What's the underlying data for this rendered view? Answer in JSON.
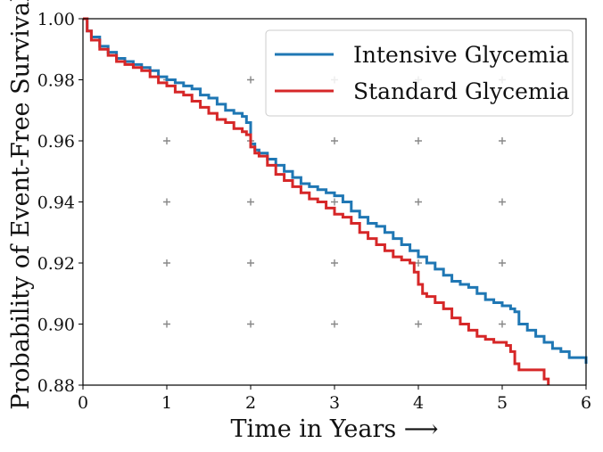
{
  "chart_data": {
    "type": "line",
    "title": "",
    "xlabel": "Time in Years ⟶",
    "ylabel": "Probability of Event-Free Survival",
    "xlim": [
      0,
      6
    ],
    "ylim": [
      0.88,
      1.0
    ],
    "xticks": [
      0,
      1,
      2,
      3,
      4,
      5,
      6
    ],
    "xtick_labels": [
      "0",
      "1",
      "2",
      "3",
      "4",
      "5",
      "6"
    ],
    "yticks": [
      0.88,
      0.9,
      0.92,
      0.94,
      0.96,
      0.98,
      1.0
    ],
    "ytick_labels": [
      "0.88",
      "0.90",
      "0.92",
      "0.94",
      "0.96",
      "0.98",
      "1.00"
    ],
    "grid": "plus-markers",
    "legend_position": "top-right",
    "series": [
      {
        "name": "Intensive Glycemia",
        "color": "#1f77b4",
        "step": true,
        "x": [
          0,
          0.05,
          0.1,
          0.2,
          0.3,
          0.4,
          0.5,
          0.6,
          0.7,
          0.8,
          0.9,
          1.0,
          1.1,
          1.2,
          1.3,
          1.4,
          1.5,
          1.6,
          1.7,
          1.8,
          1.9,
          1.95,
          2.0,
          2.05,
          2.1,
          2.2,
          2.3,
          2.4,
          2.5,
          2.6,
          2.7,
          2.8,
          2.9,
          3.0,
          3.1,
          3.2,
          3.3,
          3.4,
          3.5,
          3.6,
          3.7,
          3.8,
          3.9,
          4.0,
          4.1,
          4.2,
          4.3,
          4.4,
          4.5,
          4.6,
          4.7,
          4.8,
          4.9,
          5.0,
          5.1,
          5.15,
          5.2,
          5.3,
          5.4,
          5.5,
          5.6,
          5.7,
          5.8,
          6.0
        ],
        "y": [
          1.0,
          0.996,
          0.994,
          0.991,
          0.989,
          0.987,
          0.986,
          0.985,
          0.984,
          0.983,
          0.981,
          0.98,
          0.979,
          0.978,
          0.977,
          0.975,
          0.974,
          0.972,
          0.97,
          0.969,
          0.968,
          0.966,
          0.959,
          0.957,
          0.956,
          0.954,
          0.952,
          0.95,
          0.948,
          0.946,
          0.945,
          0.944,
          0.943,
          0.942,
          0.94,
          0.937,
          0.935,
          0.933,
          0.932,
          0.93,
          0.928,
          0.926,
          0.924,
          0.922,
          0.92,
          0.918,
          0.916,
          0.914,
          0.913,
          0.912,
          0.91,
          0.908,
          0.907,
          0.906,
          0.905,
          0.904,
          0.9,
          0.898,
          0.896,
          0.894,
          0.892,
          0.891,
          0.889,
          0.887
        ]
      },
      {
        "name": "Standard Glycemia",
        "color": "#d62728",
        "step": true,
        "x": [
          0,
          0.05,
          0.1,
          0.2,
          0.3,
          0.4,
          0.5,
          0.6,
          0.7,
          0.8,
          0.9,
          1.0,
          1.1,
          1.2,
          1.3,
          1.4,
          1.5,
          1.6,
          1.7,
          1.8,
          1.9,
          1.95,
          2.0,
          2.05,
          2.1,
          2.2,
          2.3,
          2.4,
          2.5,
          2.6,
          2.7,
          2.8,
          2.9,
          3.0,
          3.1,
          3.2,
          3.3,
          3.4,
          3.5,
          3.6,
          3.7,
          3.8,
          3.9,
          3.95,
          4.0,
          4.05,
          4.1,
          4.2,
          4.3,
          4.4,
          4.5,
          4.6,
          4.7,
          4.8,
          4.9,
          5.0,
          5.05,
          5.1,
          5.15,
          5.2,
          5.3,
          5.4,
          5.5,
          5.55
        ],
        "y": [
          1.0,
          0.996,
          0.993,
          0.99,
          0.988,
          0.986,
          0.985,
          0.984,
          0.983,
          0.981,
          0.979,
          0.978,
          0.976,
          0.975,
          0.973,
          0.971,
          0.969,
          0.967,
          0.966,
          0.964,
          0.963,
          0.962,
          0.958,
          0.956,
          0.955,
          0.952,
          0.949,
          0.947,
          0.945,
          0.943,
          0.941,
          0.94,
          0.938,
          0.936,
          0.935,
          0.933,
          0.93,
          0.928,
          0.926,
          0.924,
          0.922,
          0.921,
          0.92,
          0.917,
          0.913,
          0.91,
          0.909,
          0.907,
          0.905,
          0.902,
          0.9,
          0.898,
          0.896,
          0.895,
          0.894,
          0.894,
          0.893,
          0.891,
          0.887,
          0.885,
          0.885,
          0.885,
          0.882,
          0.88
        ]
      }
    ]
  }
}
